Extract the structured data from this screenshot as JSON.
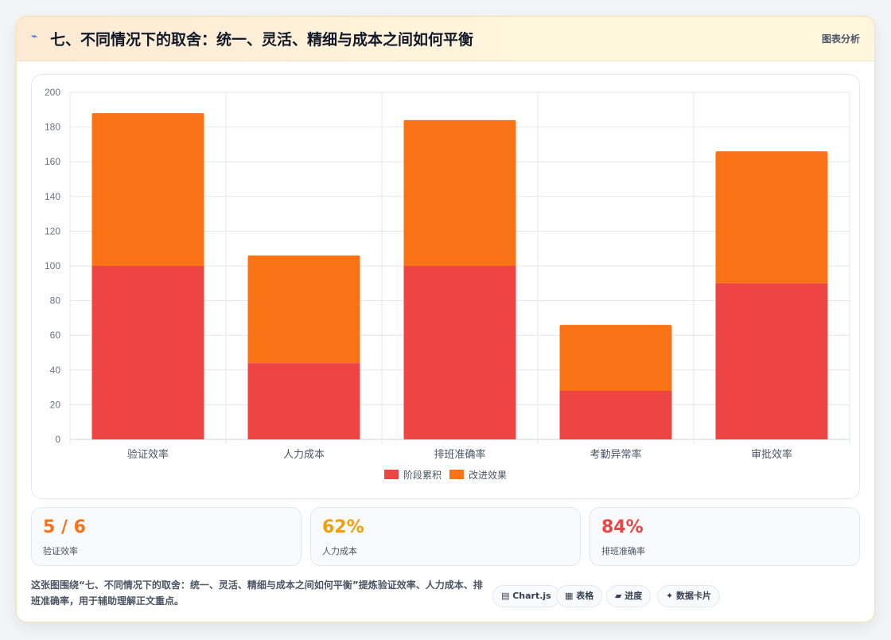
{
  "header": {
    "icon": "lightning-icon",
    "title": "七、不同情况下的取舍：统一、灵活、精细与成本之间如何平衡",
    "tag": "图表分析"
  },
  "chart_data": {
    "type": "bar",
    "stacked": true,
    "categories": [
      "验证效率",
      "人力成本",
      "排班准确率",
      "考勤异常率",
      "审批效率"
    ],
    "series": [
      {
        "name": "阶段累积",
        "color": "#ef4444",
        "values": [
          100,
          44,
          100,
          28,
          90
        ]
      },
      {
        "name": "改进效果",
        "color": "#f97316",
        "values": [
          88,
          62,
          84,
          38,
          76
        ]
      }
    ],
    "ylim": [
      0,
      200
    ],
    "yticks": [
      0,
      20,
      40,
      60,
      80,
      100,
      120,
      140,
      160,
      180,
      200
    ],
    "grid": true,
    "legend": "bottom"
  },
  "kpis": [
    {
      "value": "5 / 6",
      "label": "验证效率",
      "color": "#f97316"
    },
    {
      "value": "62%",
      "label": "人力成本",
      "color": "#f59e0b"
    },
    {
      "value": "84%",
      "label": "排班准确率",
      "color": "#ef4444"
    }
  ],
  "footer": {
    "note": "这张图围绕“七、不同情况下的取舍：统一、灵活、精细与成本之间如何平衡”提炼验证效率、人力成本、排班准确率，用于辅助理解正文重点。",
    "chips": [
      "▤ Chart.js",
      "▦ 表格",
      "▰ 进度",
      "✦ 数据卡片"
    ]
  }
}
